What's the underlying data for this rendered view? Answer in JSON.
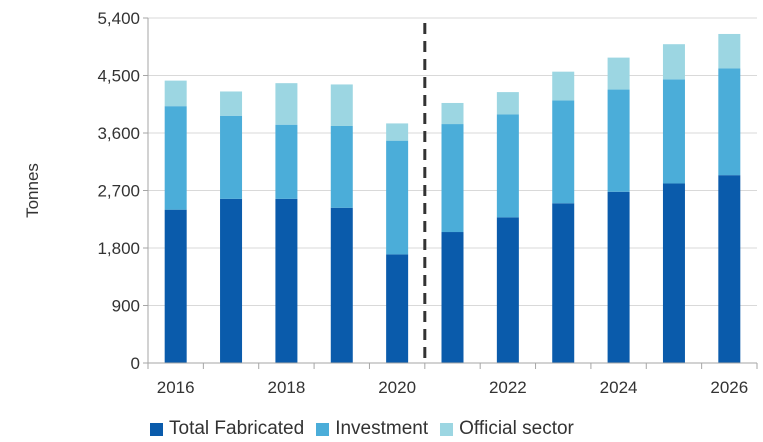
{
  "chart_data": {
    "type": "bar",
    "stacked": true,
    "x": [
      2016,
      2017,
      2018,
      2019,
      2020,
      2021,
      2022,
      2023,
      2024,
      2025,
      2026
    ],
    "x_tick_labels": [
      "2016",
      "2018",
      "2020",
      "2022",
      "2024",
      "2026"
    ],
    "ylabel": "Tonnes",
    "ylim": [
      0,
      5400
    ],
    "y_ticks": [
      0,
      900,
      1800,
      2700,
      3600,
      4500,
      5400
    ],
    "y_tick_labels": [
      "0",
      "900",
      "1,800",
      "2,700",
      "3,600",
      "4,500",
      "5,400"
    ],
    "forecast_divider_between": [
      2020,
      2021
    ],
    "legend_position": "bottom",
    "series": [
      {
        "name": "Total Fabricated",
        "color": "#0a5bab",
        "values": [
          2400,
          2570,
          2570,
          2430,
          1700,
          2050,
          2280,
          2500,
          2680,
          2810,
          2940
        ]
      },
      {
        "name": "Investment",
        "color": "#4badd9",
        "values": [
          1620,
          1300,
          1160,
          1280,
          1780,
          1690,
          1610,
          1610,
          1600,
          1630,
          1670
        ]
      },
      {
        "name": "Official sector",
        "color": "#9cd6e2",
        "values": [
          400,
          380,
          650,
          650,
          270,
          330,
          350,
          450,
          500,
          550,
          540
        ]
      }
    ]
  }
}
